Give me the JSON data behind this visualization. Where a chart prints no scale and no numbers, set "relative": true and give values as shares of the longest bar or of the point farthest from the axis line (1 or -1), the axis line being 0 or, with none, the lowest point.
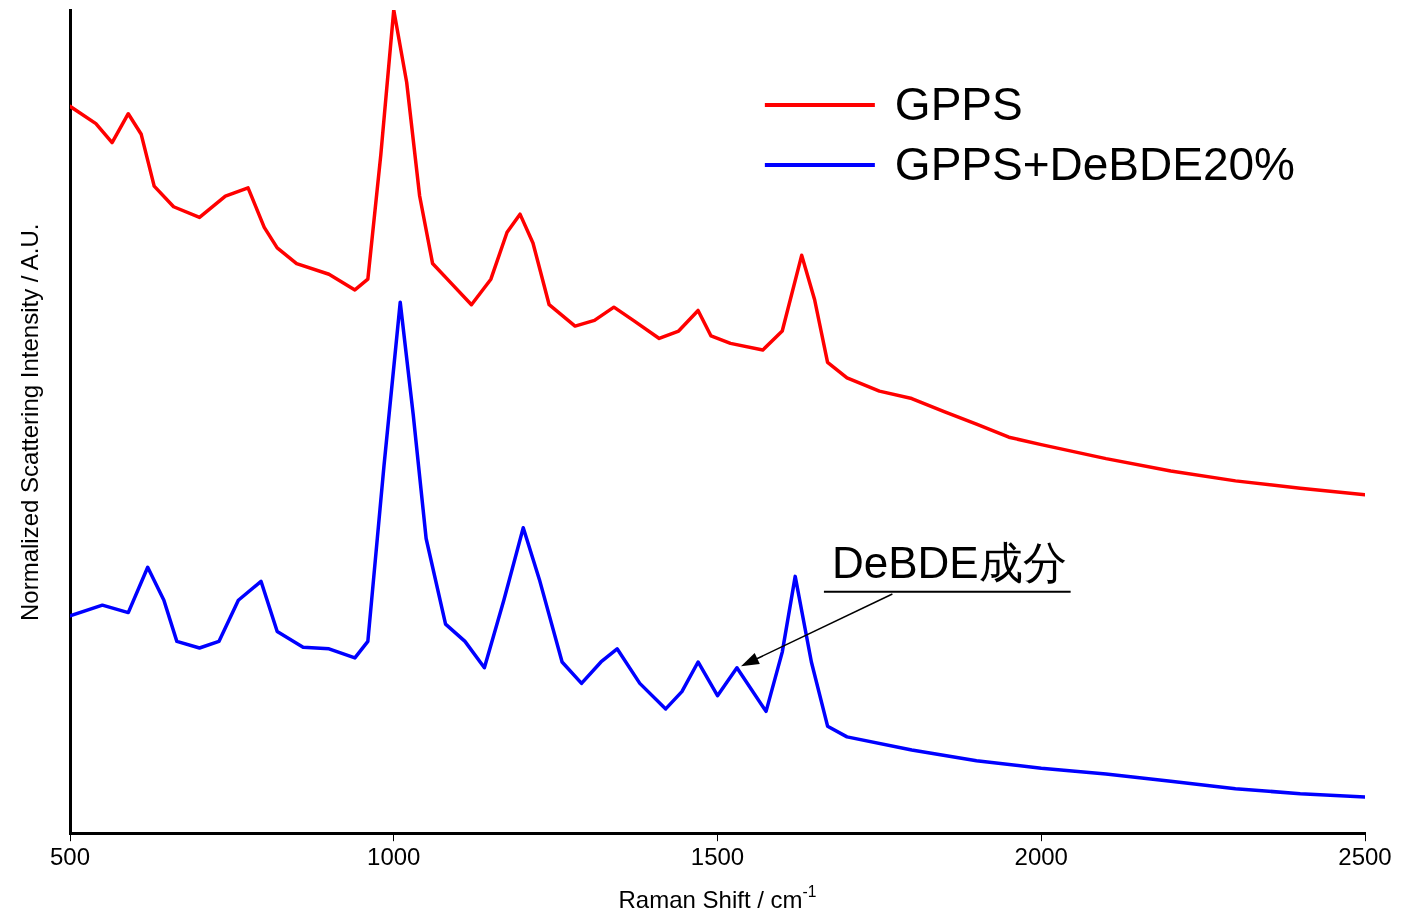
{
  "chart_data": {
    "type": "line",
    "relative": true,
    "xlabel": "Raman Shift / cm$^{-1}$",
    "ylabel": "Normalized Scattering Intensity / A.U.",
    "xlim": [
      500,
      2500
    ],
    "xticks": [
      500,
      1000,
      1500,
      2000,
      2500
    ],
    "grid": false,
    "legend": "top right",
    "marker": "none",
    "line_style": "solid",
    "annotations": [
      {
        "text": "DeBDE成分",
        "x": 1530,
        "y": 0.201
      }
    ],
    "series": [
      {
        "name": "GPPS",
        "color": "#ff0000",
        "x": [
          500,
          540,
          565,
          590,
          610,
          630,
          660,
          700,
          740,
          775,
          800,
          820,
          850,
          900,
          940,
          960,
          980,
          1000,
          1020,
          1040,
          1060,
          1090,
          1120,
          1150,
          1175,
          1195,
          1215,
          1240,
          1280,
          1310,
          1340,
          1370,
          1410,
          1440,
          1470,
          1490,
          1520,
          1570,
          1600,
          1630,
          1650,
          1670,
          1700,
          1750,
          1800,
          1850,
          1900,
          1950,
          2000,
          2100,
          2200,
          2300,
          2400,
          2500
        ],
        "values": [
          0.883,
          0.862,
          0.839,
          0.874,
          0.849,
          0.786,
          0.761,
          0.748,
          0.774,
          0.784,
          0.736,
          0.711,
          0.692,
          0.679,
          0.66,
          0.673,
          0.824,
          1.0,
          0.912,
          0.774,
          0.692,
          0.667,
          0.642,
          0.673,
          0.73,
          0.752,
          0.717,
          0.642,
          0.616,
          0.623,
          0.639,
          0.623,
          0.601,
          0.61,
          0.635,
          0.604,
          0.595,
          0.587,
          0.61,
          0.702,
          0.648,
          0.572,
          0.553,
          0.537,
          0.528,
          0.512,
          0.497,
          0.481,
          0.472,
          0.455,
          0.44,
          0.428,
          0.419,
          0.411
        ]
      },
      {
        "name": "GPPS+DeBDE20%",
        "color": "#0000ff",
        "x": [
          500,
          550,
          590,
          620,
          645,
          665,
          700,
          730,
          760,
          795,
          820,
          860,
          900,
          940,
          960,
          985,
          1010,
          1030,
          1050,
          1080,
          1110,
          1140,
          1170,
          1200,
          1225,
          1260,
          1290,
          1320,
          1345,
          1380,
          1420,
          1445,
          1470,
          1500,
          1530,
          1575,
          1600,
          1620,
          1645,
          1670,
          1700,
          1800,
          1900,
          2000,
          2100,
          2200,
          2300,
          2400,
          2500
        ],
        "values": [
          0.264,
          0.277,
          0.268,
          0.323,
          0.283,
          0.233,
          0.225,
          0.233,
          0.283,
          0.306,
          0.245,
          0.226,
          0.224,
          0.213,
          0.233,
          0.447,
          0.645,
          0.509,
          0.358,
          0.254,
          0.233,
          0.201,
          0.283,
          0.371,
          0.308,
          0.208,
          0.182,
          0.208,
          0.224,
          0.182,
          0.151,
          0.172,
          0.208,
          0.167,
          0.201,
          0.148,
          0.22,
          0.312,
          0.208,
          0.13,
          0.117,
          0.101,
          0.088,
          0.079,
          0.072,
          0.063,
          0.054,
          0.048,
          0.044
        ]
      }
    ]
  }
}
